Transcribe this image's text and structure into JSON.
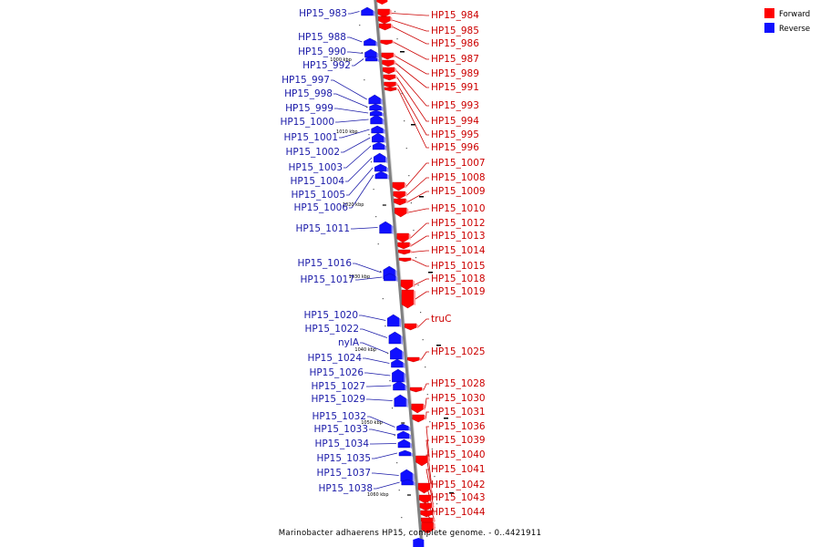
{
  "colors": {
    "forward": "#ff0000",
    "reverse": "#1010ff",
    "forward_label": "#cc0000",
    "reverse_label": "#1a1aa8",
    "axis": "#808080"
  },
  "legend": {
    "forward": "Forward",
    "reverse": "Reverse"
  },
  "caption": "Marinobacter adhaerens HP15, complete genome. - 0..4421911",
  "ticks": [
    "1000 kbp",
    "1010 kbp",
    "1020 kbp",
    "1030 kbp",
    "1040 kbp",
    "1050 kbp",
    "1060 kbp"
  ],
  "forward_genes": [
    "HP15_984",
    "HP15_985",
    "HP15_986",
    "HP15_987",
    "HP15_989",
    "HP15_991",
    "HP15_993",
    "HP15_994",
    "HP15_995",
    "HP15_996",
    "HP15_1007",
    "HP15_1008",
    "HP15_1009",
    "HP15_1010",
    "HP15_1012",
    "HP15_1013",
    "HP15_1014",
    "HP15_1015",
    "HP15_1018",
    "HP15_1019",
    "truC",
    "HP15_1025",
    "HP15_1028",
    "HP15_1030",
    "HP15_1031",
    "HP15_1036",
    "HP15_1039",
    "HP15_1040",
    "HP15_1041",
    "HP15_1042",
    "HP15_1043",
    "HP15_1044"
  ],
  "reverse_genes": [
    "HP15_983",
    "HP15_988",
    "HP15_990",
    "HP15_992",
    "HP15_997",
    "HP15_998",
    "HP15_999",
    "HP15_1000",
    "HP15_1001",
    "HP15_1002",
    "HP15_1003",
    "HP15_1004",
    "HP15_1005",
    "HP15_1006",
    "HP15_1011",
    "HP15_1016",
    "HP15_1017",
    "HP15_1020",
    "HP15_1022",
    "nylA",
    "HP15_1024",
    "HP15_1026",
    "HP15_1027",
    "HP15_1029",
    "HP15_1032",
    "HP15_1033",
    "HP15_1034",
    "HP15_1035",
    "HP15_1037",
    "HP15_1038"
  ]
}
